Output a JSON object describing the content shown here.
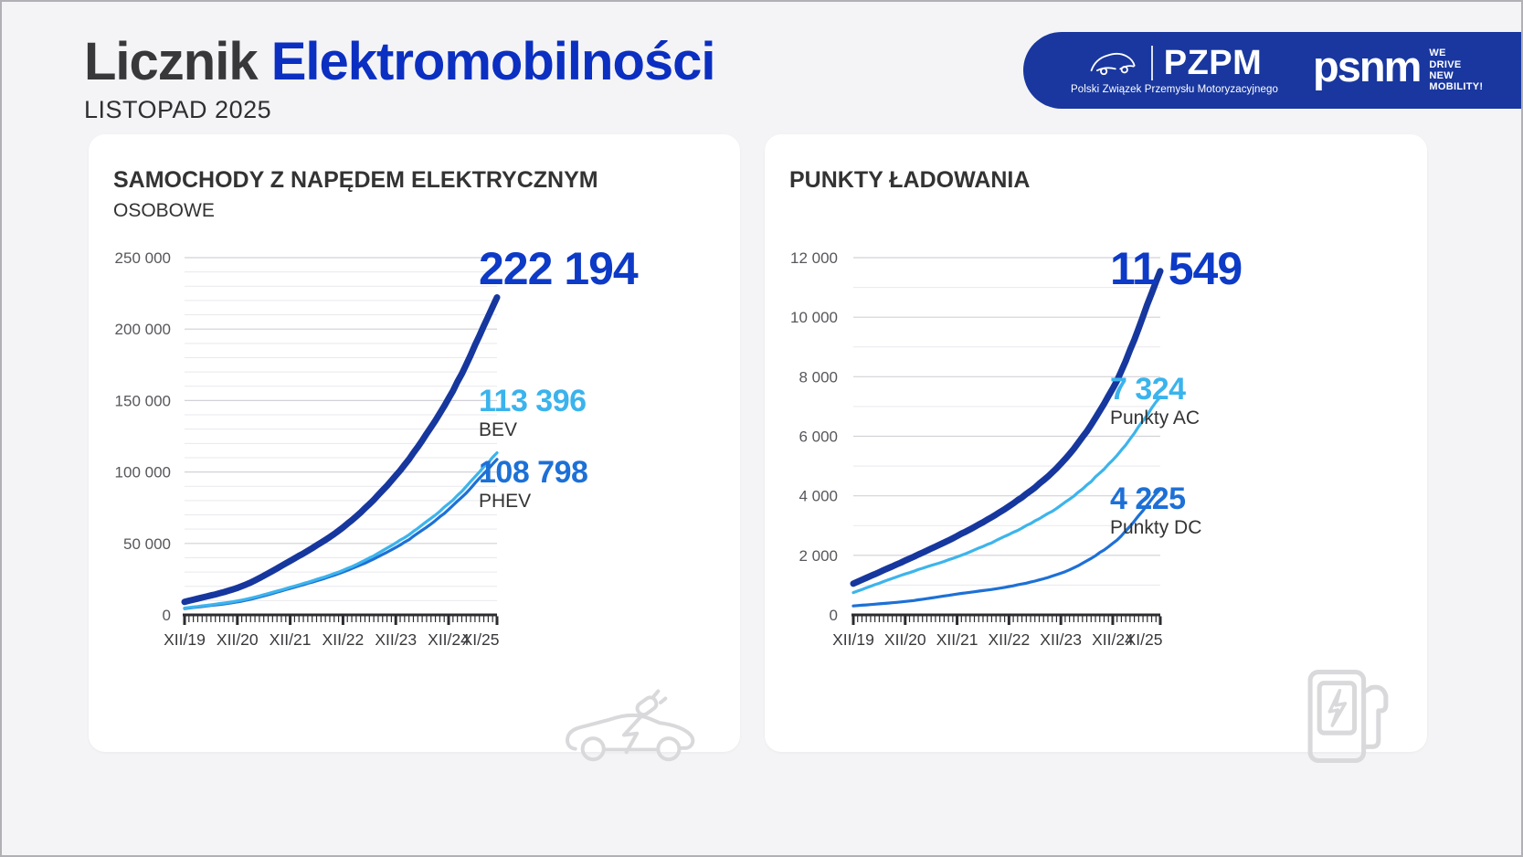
{
  "page": {
    "title_dark": "Licznik",
    "title_blue": "Elektromobilności",
    "date": "LISTOPAD 2025"
  },
  "logos": {
    "pzpm": {
      "name": "PZPM",
      "caption": "Polski Związek Przemysłu Motoryzacyjnego"
    },
    "psnm": {
      "name": "psnm",
      "tagline": [
        "WE",
        "DRIVE",
        "NEW MOBILITY!"
      ]
    }
  },
  "colors": {
    "page_bg": "#f4f4f6",
    "panel_bg": "#ffffff",
    "border": "#b0b0b5",
    "title_dark": "#38383a",
    "title_blue": "#0b2fc1",
    "banner_blue": "#19379f",
    "text_dark": "#333333",
    "axis_text": "#57575c",
    "axis_line": "#2c2c30",
    "grid_minor": "#e9e9ed",
    "grid_major": "#d2d2d7",
    "icon_gray": "#d9d9dc"
  },
  "chart_data": [
    {
      "type": "line",
      "title": "SAMOCHODY Z NAPĘDEM ELEKTRYCZNYM",
      "subtitle": "OSOBOWE",
      "x_tick_labels": [
        "XII/19",
        "XII/20",
        "XII/21",
        "XII/22",
        "XII/23",
        "XII/24",
        "XI/25"
      ],
      "x_tick_months": [
        0,
        12,
        24,
        36,
        48,
        60,
        71
      ],
      "months_total": 72,
      "ylim": [
        0,
        250000
      ],
      "y_minor_step": 10000,
      "y_major_step": 50000,
      "y_tick_labels": [
        "0",
        "50 000",
        "100 000",
        "150 000",
        "200 000",
        "250 000"
      ],
      "legend_position": "right",
      "grid": true,
      "series": [
        {
          "key": "total",
          "color": "#16379e",
          "values_at_ticks": [
            9100,
            18875,
            37800,
            61200,
            97500,
            151500,
            222194
          ],
          "callout": {
            "value": "222 194",
            "label": "",
            "color": "#0d3ac6"
          }
        },
        {
          "key": "bev",
          "color": "#3db4ec",
          "values_at_ticks": [
            4700,
            9800,
            19300,
            31200,
            50300,
            77800,
            113396
          ],
          "callout": {
            "value": "113 396",
            "label": "BEV",
            "color": "#3bb3ec"
          }
        },
        {
          "key": "phev",
          "color": "#1d70d6",
          "values_at_ticks": [
            4400,
            9075,
            18500,
            30000,
            47200,
            73700,
            108798
          ],
          "callout": {
            "value": "108 798",
            "label": "PHEV",
            "color": "#1d70d6"
          }
        }
      ]
    },
    {
      "type": "line",
      "title": "PUNKTY ŁADOWANIA",
      "x_tick_labels": [
        "XII/19",
        "XII/20",
        "XII/21",
        "XII/22",
        "XII/23",
        "XII/24",
        "XI/25"
      ],
      "x_tick_months": [
        0,
        12,
        24,
        36,
        48,
        60,
        71
      ],
      "months_total": 72,
      "ylim": [
        0,
        12000
      ],
      "y_minor_step": 1000,
      "y_major_step": 2000,
      "y_tick_labels": [
        "0",
        "2 000",
        "4 000",
        "6 000",
        "8 000",
        "10 000",
        "12 000"
      ],
      "legend_position": "right",
      "grid": true,
      "series": [
        {
          "key": "total",
          "color": "#16379e",
          "values_at_ticks": [
            1050,
            1825,
            2650,
            3650,
            5080,
            7600,
            11549
          ],
          "callout": {
            "value": "11 549",
            "label": "",
            "color": "#0d3ac6"
          }
        },
        {
          "key": "ac",
          "color": "#3db4ec",
          "values_at_ticks": [
            750,
            1375,
            1950,
            2700,
            3680,
            5200,
            7324
          ],
          "callout": {
            "value": "7 324",
            "label": "Punkty AC",
            "color": "#3bb3ec"
          }
        },
        {
          "key": "dc",
          "color": "#1d70d6",
          "values_at_ticks": [
            300,
            450,
            700,
            950,
            1400,
            2400,
            4225
          ],
          "callout": {
            "value": "4 225",
            "label": "Punkty DC",
            "color": "#1d70d6"
          }
        }
      ]
    }
  ]
}
